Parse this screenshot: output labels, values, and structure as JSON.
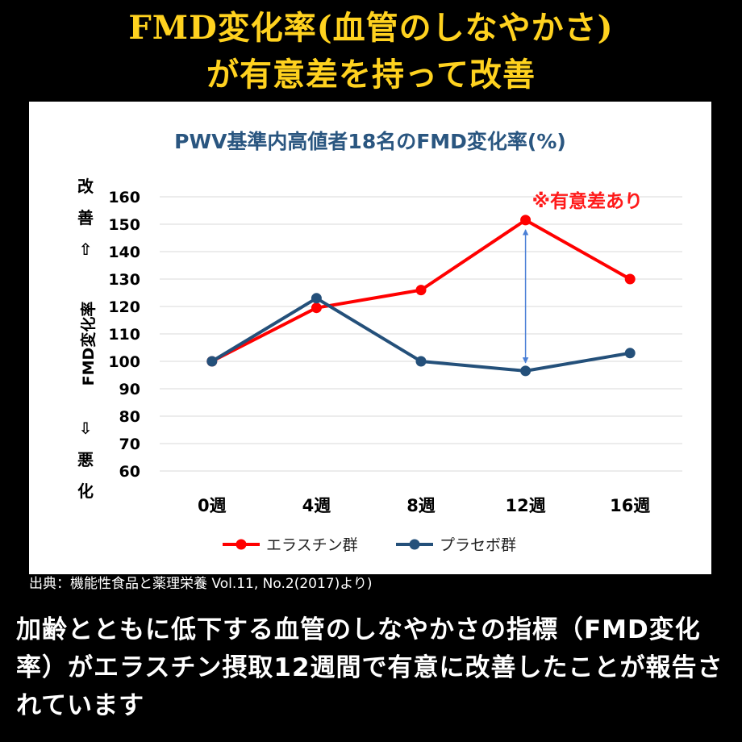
{
  "header": {
    "line1": "FMD変化率(血管のしなやかさ)",
    "line2": "が有意差を持って改善"
  },
  "chart_data": {
    "type": "line",
    "title": "PWV基準内高値者18名のFMD変化率(%)",
    "xlabel": "",
    "ylabel": "FMD変化率",
    "ylabel_top": [
      "改",
      "善",
      "⇧"
    ],
    "ylabel_bottom": [
      "⇩",
      "悪",
      "化"
    ],
    "categories": [
      "0週",
      "4週",
      "8週",
      "12週",
      "16週"
    ],
    "yticks": [
      60,
      70,
      80,
      90,
      100,
      110,
      120,
      130,
      140,
      150,
      160
    ],
    "ylim": [
      60,
      160
    ],
    "grid": true,
    "legend_position": "bottom",
    "series": [
      {
        "name": "エラスチン群",
        "color": "#ff0000",
        "values": [
          100,
          119.5,
          126,
          151.5,
          130
        ]
      },
      {
        "name": "プラセボ群",
        "color": "#24507a",
        "values": [
          100,
          123,
          100,
          96.5,
          103
        ]
      }
    ],
    "annotation": {
      "text": "※有意差あり",
      "color": "#ff1a1a",
      "arrow_color": "#4a7fd6",
      "category_index": 3
    }
  },
  "source": "出典：機能性食品と薬理栄養 Vol.11, No.2(2017)より)",
  "caption": "加齢とともに低下する血管のしなやかさの指標（FMD変化率）がエラスチン摂取12週間で有意に改善したことが報告されています"
}
